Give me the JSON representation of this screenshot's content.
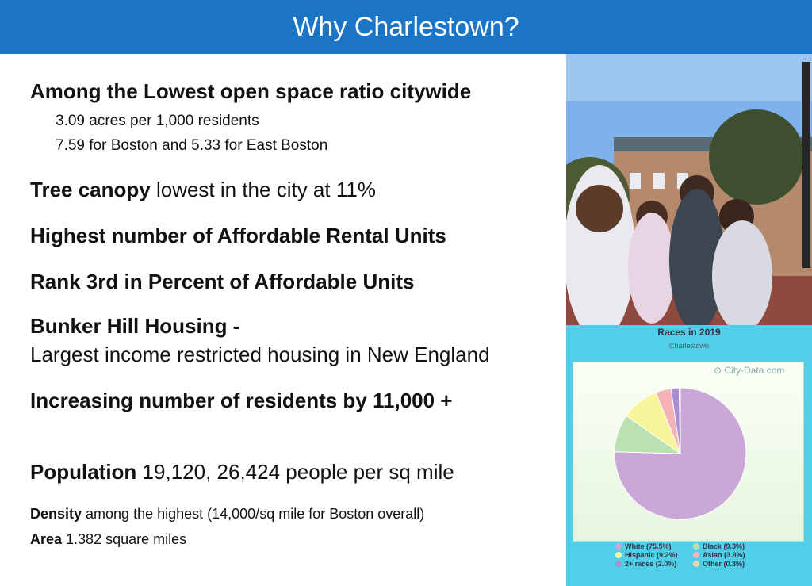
{
  "slide": {
    "title": "Why Charlestown?",
    "points": {
      "open_space_heading": "Among the Lowest open space ratio citywide",
      "open_space_detail1": "3.09 acres per 1,000 residents",
      "open_space_detail2": "7.59 for Boston and 5.33 for East Boston",
      "tree_bold": "Tree canopy",
      "tree_rest": " lowest in the city at 11%",
      "rental": "Highest number of Affordable Rental Units",
      "rank": "Rank 3rd in Percent of Affordable Units",
      "bunker_heading": "Bunker Hill Housing -",
      "bunker_detail": "Largest income restricted housing in New England",
      "increase": "Increasing number of residents by 11,000 +",
      "population_bold": "Population",
      "population_rest": " 19,120, 26,424 people per sq mile",
      "density_bold": "Density",
      "density_rest": " among the highest (14,000/sq mile for Boston overall)",
      "area_bold": "Area",
      "area_rest": " 1.382 square miles"
    }
  },
  "chart_data": {
    "type": "pie",
    "title": "Races in 2019",
    "subtitle": "Charlestown",
    "watermark": "City-Data.com",
    "legend_position": "bottom",
    "slices": [
      {
        "label": "White (75.5%)",
        "value": 75.5,
        "color": "#c9a8d8"
      },
      {
        "label": "Black (9.3%)",
        "value": 9.3,
        "color": "#b9e2b0"
      },
      {
        "label": "Hispanic (9.2%)",
        "value": 9.2,
        "color": "#f6f59a"
      },
      {
        "label": "Asian (3.8%)",
        "value": 3.8,
        "color": "#f5b3b8"
      },
      {
        "label": "2+ races (2.0%)",
        "value": 2.0,
        "color": "#a98fd0"
      },
      {
        "label": "Other (0.3%)",
        "value": 0.3,
        "color": "#f3d0a6"
      }
    ]
  },
  "colors": {
    "title_bar": "#1b74c4",
    "chart_panel": "#4fd0e8"
  }
}
